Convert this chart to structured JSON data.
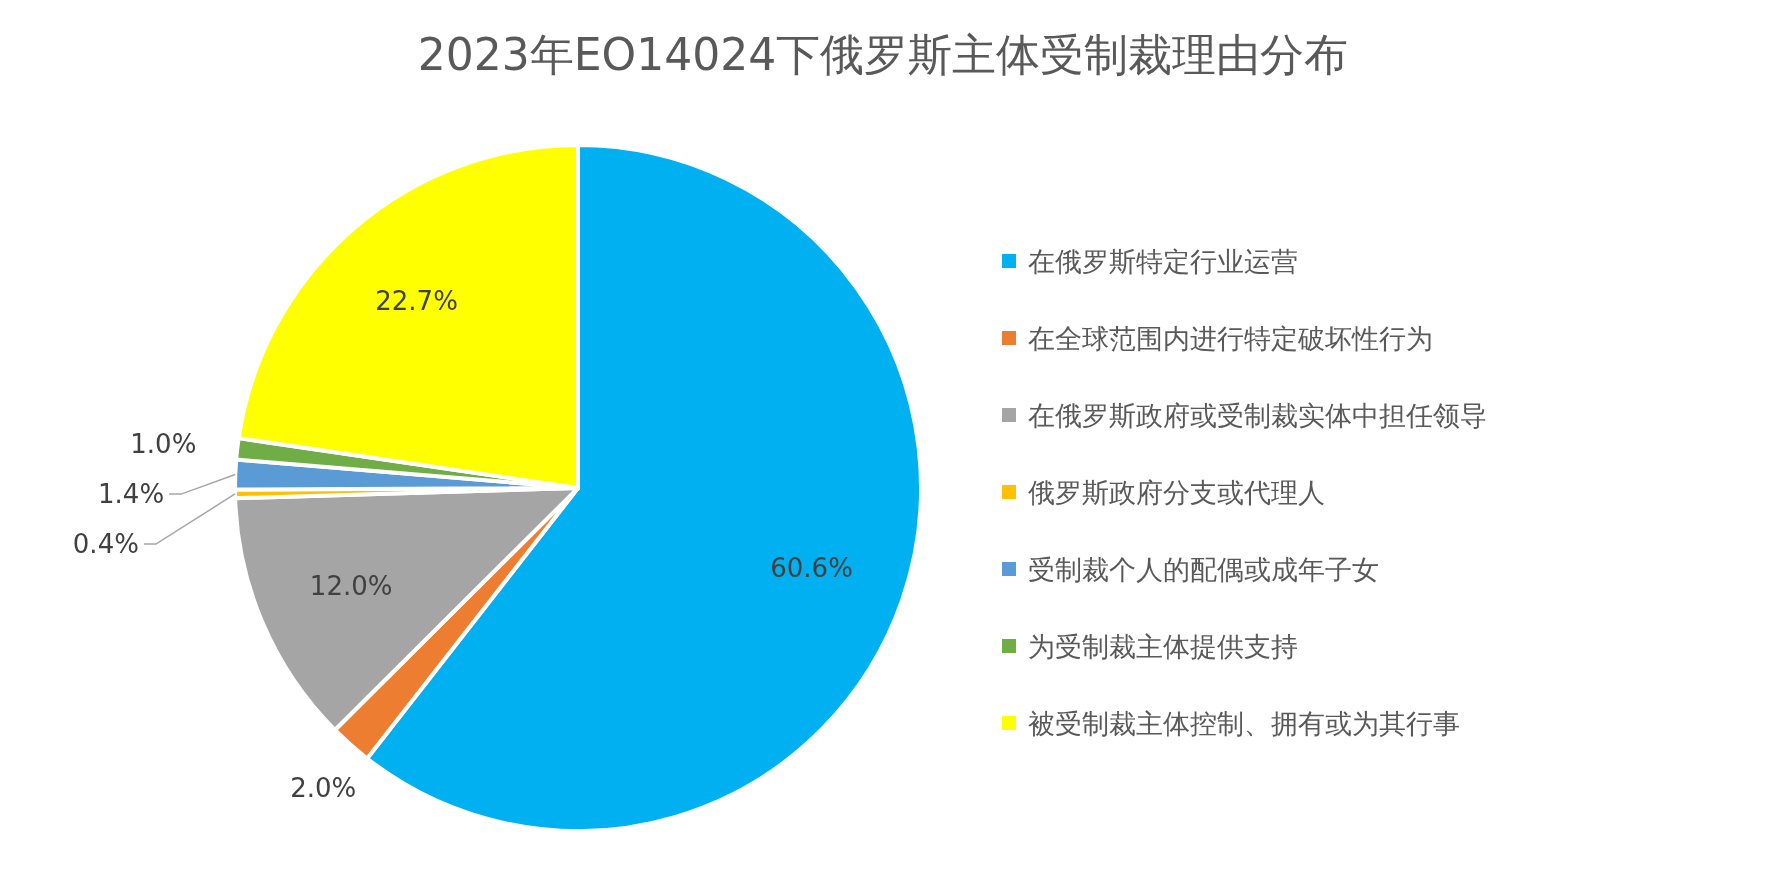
{
  "chart_data": {
    "type": "pie",
    "title": "2023年EO14024下俄罗斯主体受制裁理由分布",
    "categories": [
      "在俄罗斯特定行业运营",
      "在全球范围内进行特定破坏性行为",
      "在俄罗斯政府或受制裁实体中担任领导",
      "俄罗斯政府分支或代理人",
      "受制裁个人的配偶或成年子女",
      "为受制裁主体提供支持",
      "被受制裁主体控制、拥有或为其行事"
    ],
    "values": [
      60.6,
      2.0,
      12.0,
      0.4,
      1.4,
      1.0,
      22.7
    ],
    "colors": [
      "#00b0f0",
      "#ed7d31",
      "#a5a5a5",
      "#ffc000",
      "#5b9bd5",
      "#70ad47",
      "#ffff00"
    ],
    "value_labels": [
      "60.6%",
      "2.0%",
      "12.0%",
      "0.4%",
      "1.4%",
      "1.0%",
      "22.7%"
    ],
    "legend": "right"
  }
}
